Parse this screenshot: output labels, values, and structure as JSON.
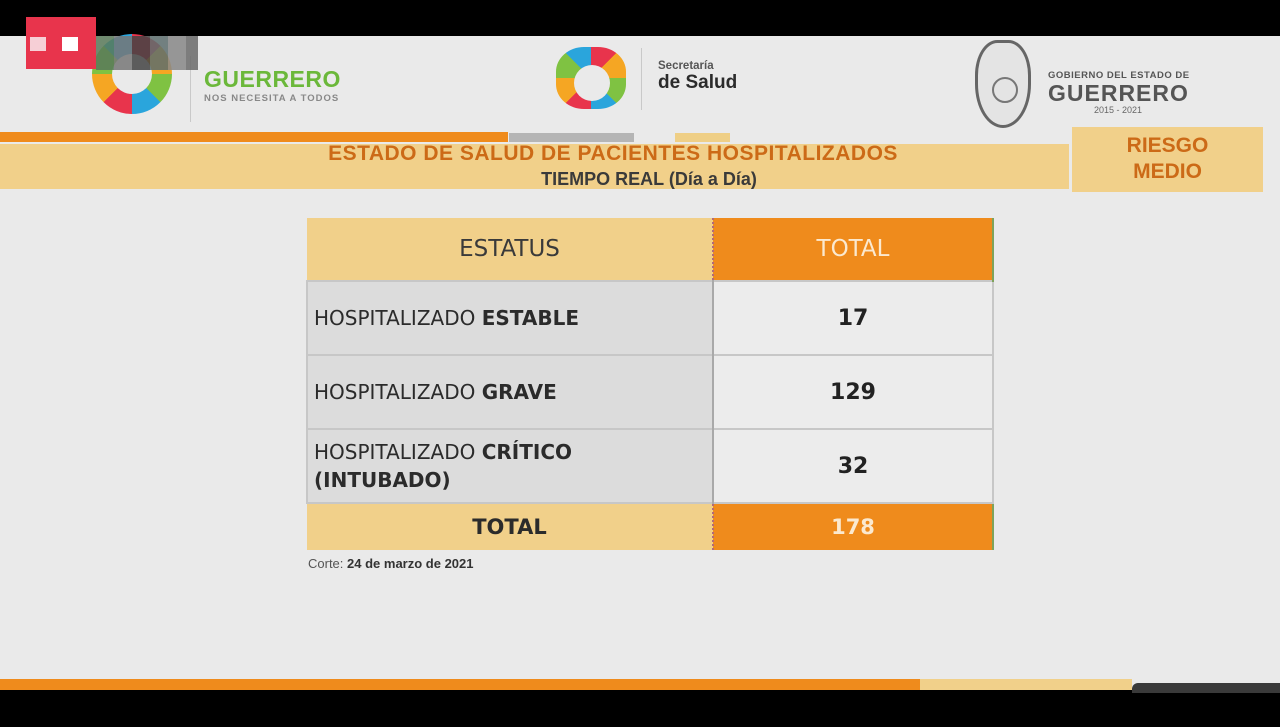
{
  "header": {
    "left_logo": {
      "name": "GUERRERO",
      "tagline": "NOS NECESITA A TODOS"
    },
    "mid_logo": {
      "line1": "Secretaría",
      "line2": "de Salud"
    },
    "right_logo": {
      "line1": "GOBIERNO DEL ESTADO DE",
      "line2": "GUERRERO",
      "years": "2015 - 2021"
    }
  },
  "title": {
    "main": "ESTADO DE SALUD DE PACIENTES HOSPITALIZADOS",
    "sub": "TIEMPO REAL (Día a Día)"
  },
  "risk": {
    "line1": "RIESGO",
    "line2": "MEDIO"
  },
  "table": {
    "headers": [
      "ESTATUS",
      "TOTAL"
    ],
    "rows": [
      {
        "label_light": "HOSPITALIZADO ",
        "label_bold": "ESTABLE",
        "value": "17"
      },
      {
        "label_light": "HOSPITALIZADO ",
        "label_bold": "GRAVE",
        "value": "129"
      },
      {
        "label_light": "HOSPITALIZADO ",
        "label_bold": "CRÍTICO",
        "label_bold2": "(INTUBADO)",
        "value": "32"
      }
    ],
    "total_label": "TOTAL",
    "total_value": "178"
  },
  "cut": {
    "prefix": "Corte:",
    "date": "24 de marzo de 2021"
  },
  "colors": {
    "orange": "#ef8b1c",
    "beige": "#f1d08a",
    "title_orange": "#cc6a17",
    "logo_green": "#6bb83a"
  },
  "icons": [
    "guerrero-logo-icon",
    "secretaria-logo-icon",
    "state-shield-icon"
  ]
}
